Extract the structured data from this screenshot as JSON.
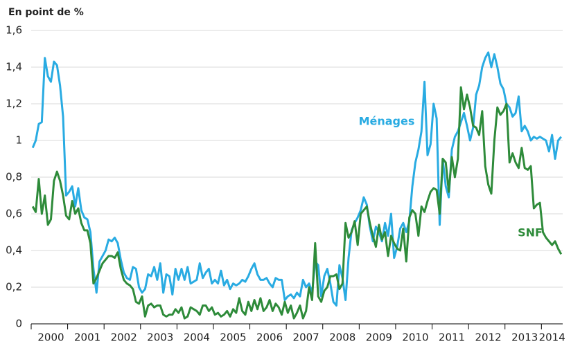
{
  "chart_data": {
    "type": "line",
    "y_label": "En point de %",
    "categories": [
      null,
      null,
      null,
      null,
      null,
      null,
      "2000",
      null,
      null,
      null,
      null,
      null,
      null,
      null,
      null,
      null,
      null,
      null,
      "2001",
      null,
      null,
      null,
      null,
      null,
      null,
      null,
      null,
      null,
      null,
      null,
      "2002",
      null,
      null,
      null,
      null,
      null,
      null,
      null,
      null,
      null,
      null,
      null,
      "2003",
      null,
      null,
      null,
      null,
      null,
      null,
      null,
      null,
      null,
      null,
      null,
      "2004",
      null,
      null,
      null,
      null,
      null,
      null,
      null,
      null,
      null,
      null,
      null,
      "2005",
      null,
      null,
      null,
      null,
      null,
      null,
      null,
      null,
      null,
      null,
      null,
      "2006",
      null,
      null,
      null,
      null,
      null,
      null,
      null,
      null,
      null,
      null,
      null,
      "2007",
      null,
      null,
      null,
      null,
      null,
      null,
      null,
      null,
      null,
      null,
      null,
      "2008",
      null,
      null,
      null,
      null,
      null,
      null,
      null,
      null,
      null,
      null,
      null,
      "2009",
      null,
      null,
      null,
      null,
      null,
      null,
      null,
      null,
      null,
      null,
      null,
      "2010",
      null,
      null,
      null,
      null,
      null,
      null,
      null,
      null,
      null,
      null,
      null,
      "2011",
      null,
      null,
      null,
      null,
      null,
      null,
      null,
      null,
      null,
      null,
      null,
      "2012",
      null,
      null,
      null,
      null,
      null,
      null,
      null,
      null,
      null,
      null,
      null,
      "2013",
      null,
      null,
      null,
      null,
      null,
      null,
      null,
      null,
      "2014",
      null,
      null,
      null
    ],
    "series": [
      {
        "name": "Ménages",
        "color": "#29abe2",
        "values": [
          0.96,
          1.0,
          1.09,
          1.1,
          1.45,
          1.35,
          1.32,
          1.43,
          1.41,
          1.3,
          1.13,
          0.7,
          0.72,
          0.75,
          0.64,
          0.74,
          0.62,
          0.58,
          0.57,
          0.5,
          0.3,
          0.17,
          0.34,
          0.37,
          0.4,
          0.46,
          0.45,
          0.47,
          0.44,
          0.35,
          0.28,
          0.25,
          0.24,
          0.31,
          0.3,
          0.2,
          0.17,
          0.19,
          0.27,
          0.26,
          0.31,
          0.24,
          0.33,
          0.17,
          0.27,
          0.26,
          0.16,
          0.3,
          0.24,
          0.3,
          0.24,
          0.31,
          0.22,
          0.23,
          0.24,
          0.33,
          0.25,
          0.28,
          0.3,
          0.22,
          0.24,
          0.22,
          0.29,
          0.21,
          0.24,
          0.19,
          0.22,
          0.21,
          0.22,
          0.24,
          0.23,
          0.26,
          0.3,
          0.33,
          0.27,
          0.24,
          0.24,
          0.25,
          0.22,
          0.2,
          0.25,
          0.24,
          0.24,
          0.13,
          0.15,
          0.16,
          0.14,
          0.17,
          0.15,
          0.24,
          0.2,
          0.22,
          0.17,
          0.34,
          0.32,
          0.15,
          0.26,
          0.3,
          0.22,
          0.12,
          0.1,
          0.32,
          0.25,
          0.13,
          0.36,
          0.51,
          0.55,
          0.58,
          0.62,
          0.69,
          0.65,
          0.53,
          0.45,
          0.53,
          0.5,
          0.45,
          0.55,
          0.48,
          0.6,
          0.36,
          0.42,
          0.52,
          0.55,
          0.5,
          0.56,
          0.75,
          0.88,
          0.95,
          1.05,
          1.32,
          0.92,
          0.98,
          1.2,
          1.12,
          0.54,
          0.9,
          0.75,
          0.69,
          0.95,
          1.02,
          1.05,
          1.1,
          1.15,
          1.08,
          1.0,
          1.07,
          1.25,
          1.3,
          1.4,
          1.45,
          1.48,
          1.4,
          1.47,
          1.4,
          1.31,
          1.28,
          1.2,
          1.18,
          1.13,
          1.15,
          1.24,
          1.05,
          1.08,
          1.05,
          1.0,
          1.02,
          1.01,
          1.02,
          1.01,
          1.0,
          0.94,
          1.03,
          0.9,
          1.0,
          1.02
        ]
      },
      {
        "name": "SNF",
        "color": "#2e8b3a",
        "values": [
          0.64,
          0.61,
          0.79,
          0.6,
          0.7,
          0.54,
          0.57,
          0.78,
          0.83,
          0.78,
          0.7,
          0.59,
          0.57,
          0.67,
          0.6,
          0.63,
          0.55,
          0.51,
          0.51,
          0.44,
          0.22,
          0.25,
          0.29,
          0.33,
          0.35,
          0.37,
          0.37,
          0.36,
          0.39,
          0.3,
          0.24,
          0.22,
          0.21,
          0.19,
          0.12,
          0.11,
          0.15,
          0.04,
          0.1,
          0.11,
          0.09,
          0.1,
          0.1,
          0.05,
          0.04,
          0.05,
          0.05,
          0.08,
          0.06,
          0.09,
          0.03,
          0.04,
          0.09,
          0.08,
          0.07,
          0.05,
          0.1,
          0.1,
          0.07,
          0.09,
          0.05,
          0.06,
          0.04,
          0.05,
          0.07,
          0.04,
          0.08,
          0.06,
          0.14,
          0.07,
          0.05,
          0.12,
          0.07,
          0.13,
          0.08,
          0.14,
          0.07,
          0.09,
          0.13,
          0.07,
          0.11,
          0.09,
          0.05,
          0.12,
          0.06,
          0.1,
          0.03,
          0.06,
          0.1,
          0.03,
          0.07,
          0.2,
          0.13,
          0.44,
          0.15,
          0.12,
          0.18,
          0.2,
          0.26,
          0.26,
          0.27,
          0.19,
          0.22,
          0.55,
          0.47,
          0.5,
          0.56,
          0.43,
          0.6,
          0.62,
          0.64,
          0.55,
          0.48,
          0.42,
          0.54,
          0.46,
          0.5,
          0.37,
          0.48,
          0.44,
          0.41,
          0.4,
          0.52,
          0.34,
          0.58,
          0.62,
          0.6,
          0.48,
          0.64,
          0.61,
          0.67,
          0.72,
          0.74,
          0.73,
          0.6,
          0.9,
          0.88,
          0.72,
          0.91,
          0.8,
          0.9,
          1.29,
          1.17,
          1.25,
          1.18,
          1.08,
          1.07,
          1.03,
          1.16,
          0.86,
          0.76,
          0.71,
          1.0,
          1.18,
          1.14,
          1.16,
          1.2,
          0.88,
          0.93,
          0.88,
          0.85,
          0.96,
          0.85,
          0.84,
          0.86,
          0.63,
          0.65,
          0.66,
          0.5,
          0.47,
          0.45,
          0.43,
          0.45,
          0.41,
          0.38
        ]
      }
    ],
    "ylim": [
      0,
      1.6
    ],
    "yticks": [
      0,
      {
        "value": 0.2,
        "label": "0,2"
      },
      {
        "value": 0.4,
        "label": "0,4"
      },
      {
        "value": 0.6,
        "label": "0,6"
      },
      {
        "value": 0.8,
        "label": "0,8"
      },
      1,
      {
        "value": 1.2,
        "label": "1,2"
      },
      {
        "value": 1.4,
        "label": "1,4"
      },
      {
        "value": 1.6,
        "label": "1,6"
      }
    ],
    "grid": true
  }
}
